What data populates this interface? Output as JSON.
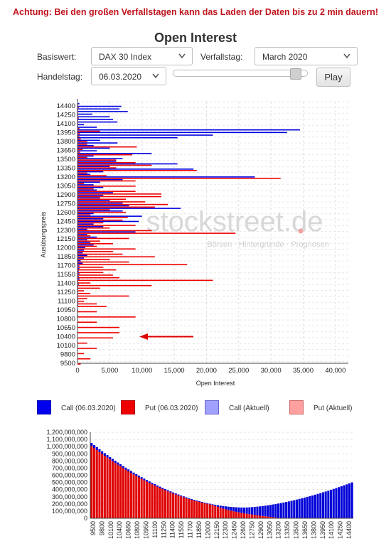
{
  "warning": "Achtung: Bei den großen Verfallstagen kann das Laden der Daten bis zu 2 min dauern!",
  "title": "Open Interest",
  "controls": {
    "basiswert_label": "Basiswert:",
    "basiswert_value": "DAX 30 Index",
    "verfallstag_label": "Verfallstag:",
    "verfallstag_value": "March 2020",
    "handelstag_label": "Handelstag:",
    "handelstag_value": "06.03.2020",
    "play_label": "Play",
    "slider_position": 0.95
  },
  "watermark": {
    "brand": "stockstreet.de",
    "tagline": "Börsen · Hintergründe · Prognosen"
  },
  "colors": {
    "call": "#0000e0",
    "put": "#ee0000",
    "call_current": "#9999ff",
    "put_current": "#ff9999",
    "arrow": "#e00000"
  },
  "legend": [
    {
      "label": "Call (06.03.2020)",
      "color": "#0000ee",
      "border": "#0000aa"
    },
    {
      "label": "Put (06.03.2020)",
      "color": "#ee0000",
      "border": "#aa0000"
    },
    {
      "label": "Call (Aktuell)",
      "color": "#a0a0ff",
      "border": "#6666cc"
    },
    {
      "label": "Put (Aktuell)",
      "color": "#ffa0a0",
      "border": "#cc6666"
    }
  ],
  "chart_data": [
    {
      "type": "bar",
      "orientation": "horizontal",
      "xlabel": "Open Interest",
      "ylabel": "Ausübungspreis",
      "xlim": [
        0,
        42000
      ],
      "xticks": [
        0,
        5000,
        10000,
        15000,
        20000,
        25000,
        30000,
        35000,
        40000
      ],
      "xtick_labels": [
        "0",
        "5,000",
        "10,000",
        "15,000",
        "20,000",
        "25,000",
        "30,000",
        "35,000",
        "40,000"
      ],
      "ytick_labels": [
        "14400",
        "14250",
        "14100",
        "13950",
        "13800",
        "13650",
        "13500",
        "13350",
        "13200",
        "13050",
        "12900",
        "12750",
        "12600",
        "12450",
        "12300",
        "12150",
        "12000",
        "11850",
        "11700",
        "11550",
        "11400",
        "11250",
        "11100",
        "10950",
        "10800",
        "10650",
        "10400",
        "10100",
        "9800",
        "9500"
      ],
      "strike_range": [
        9500,
        14500
      ],
      "highlighted_strike": 10400,
      "series": [
        {
          "name": "Call (06.03.2020)",
          "points": [
            [
              14450,
              300
            ],
            [
              14400,
              6800
            ],
            [
              14350,
              6500
            ],
            [
              14300,
              7800
            ],
            [
              14250,
              2300
            ],
            [
              14200,
              5000
            ],
            [
              14150,
              5500
            ],
            [
              14100,
              6200
            ],
            [
              14050,
              1000
            ],
            [
              14000,
              3000
            ],
            [
              13950,
              34500
            ],
            [
              13900,
              32500
            ],
            [
              13850,
              21000
            ],
            [
              13800,
              15500
            ],
            [
              13750,
              3500
            ],
            [
              13700,
              6200
            ],
            [
              13650,
              2500
            ],
            [
              13600,
              5000
            ],
            [
              13550,
              3000
            ],
            [
              13500,
              11500
            ],
            [
              13450,
              2500
            ],
            [
              13400,
              7000
            ],
            [
              13350,
              6000
            ],
            [
              13300,
              15500
            ],
            [
              13250,
              5000
            ],
            [
              13200,
              18000
            ],
            [
              13150,
              4000
            ],
            [
              13100,
              2000
            ],
            [
              13050,
              27500
            ],
            [
              13000,
              7000
            ],
            [
              12950,
              3500
            ],
            [
              12900,
              2500
            ],
            [
              12850,
              4000
            ],
            [
              12800,
              3000
            ],
            [
              12750,
              5500
            ],
            [
              12700,
              4000
            ],
            [
              12650,
              3500
            ],
            [
              12600,
              5000
            ],
            [
              12550,
              7000
            ],
            [
              12500,
              8000
            ],
            [
              12450,
              16000
            ],
            [
              12400,
              7000
            ],
            [
              12350,
              2500
            ],
            [
              12300,
              10000
            ],
            [
              12250,
              4000
            ],
            [
              12200,
              9500
            ],
            [
              12150,
              2500
            ],
            [
              12100,
              4000
            ],
            [
              12050,
              1500
            ],
            [
              12000,
              9000
            ],
            [
              11950,
              1500
            ],
            [
              11900,
              3000
            ],
            [
              11850,
              1500
            ],
            [
              11800,
              2000
            ],
            [
              11750,
              2500
            ],
            [
              11700,
              1200
            ],
            [
              11650,
              1000
            ],
            [
              11600,
              800
            ],
            [
              11550,
              1500
            ],
            [
              11500,
              1000
            ],
            [
              11450,
              500
            ],
            [
              11400,
              800
            ],
            [
              11350,
              300
            ],
            [
              11300,
              300
            ],
            [
              11250,
              200
            ],
            [
              11200,
              300
            ],
            [
              11150,
              200
            ],
            [
              11100,
              300
            ],
            [
              11050,
              100
            ],
            [
              11000,
              200
            ],
            [
              10950,
              100
            ],
            [
              10900,
              100
            ],
            [
              10850,
              100
            ],
            [
              10800,
              100
            ],
            [
              10750,
              100
            ],
            [
              10700,
              100
            ],
            [
              10650,
              100
            ],
            [
              10600,
              100
            ],
            [
              10500,
              100
            ],
            [
              10400,
              100
            ],
            [
              10300,
              50
            ],
            [
              10200,
              50
            ],
            [
              10100,
              50
            ],
            [
              10000,
              50
            ],
            [
              9900,
              50
            ],
            [
              9800,
              50
            ],
            [
              9700,
              50
            ],
            [
              9600,
              50
            ],
            [
              9500,
              50
            ]
          ]
        },
        {
          "name": "Put (06.03.2020)",
          "points": [
            [
              14450,
              100
            ],
            [
              14400,
              200
            ],
            [
              14350,
              100
            ],
            [
              14300,
              100
            ],
            [
              14250,
              100
            ],
            [
              14200,
              200
            ],
            [
              14150,
              100
            ],
            [
              14100,
              100
            ],
            [
              14050,
              100
            ],
            [
              14000,
              300
            ],
            [
              13950,
              3500
            ],
            [
              13900,
              400
            ],
            [
              13850,
              300
            ],
            [
              13800,
              500
            ],
            [
              13750,
              1500
            ],
            [
              13700,
              1500
            ],
            [
              13650,
              9200
            ],
            [
              13600,
              800
            ],
            [
              13550,
              400
            ],
            [
              13500,
              8500
            ],
            [
              13450,
              1500
            ],
            [
              13400,
              6000
            ],
            [
              13350,
              9000
            ],
            [
              13300,
              11500
            ],
            [
              13250,
              6000
            ],
            [
              13200,
              18500
            ],
            [
              13150,
              1500
            ],
            [
              13100,
              4500
            ],
            [
              13050,
              31500
            ],
            [
              13000,
              9000
            ],
            [
              12950,
              1000
            ],
            [
              12900,
              9000
            ],
            [
              12850,
              2500
            ],
            [
              12800,
              9000
            ],
            [
              12750,
              13000
            ],
            [
              12700,
              13000
            ],
            [
              12650,
              7500
            ],
            [
              12600,
              10500
            ],
            [
              12550,
              14000
            ],
            [
              12500,
              12000
            ],
            [
              12450,
              5000
            ],
            [
              12400,
              7500
            ],
            [
              12350,
              2000
            ],
            [
              12300,
              7800
            ],
            [
              12250,
              7000
            ],
            [
              12200,
              4000
            ],
            [
              12150,
              9000
            ],
            [
              12100,
              5000
            ],
            [
              12050,
              11500
            ],
            [
              12000,
              24500
            ],
            [
              11950,
              2000
            ],
            [
              11900,
              8000
            ],
            [
              11850,
              3500
            ],
            [
              11800,
              5500
            ],
            [
              11750,
              3000
            ],
            [
              11700,
              9000
            ],
            [
              11650,
              5500
            ],
            [
              11600,
              7000
            ],
            [
              11550,
              12000
            ],
            [
              11500,
              5000
            ],
            [
              11450,
              8000
            ],
            [
              11400,
              17000
            ],
            [
              11350,
              4000
            ],
            [
              11300,
              6000
            ],
            [
              11250,
              4000
            ],
            [
              11200,
              5500
            ],
            [
              11150,
              6500
            ],
            [
              11100,
              21000
            ],
            [
              11050,
              2000
            ],
            [
              11000,
              11500
            ],
            [
              10950,
              3500
            ],
            [
              10900,
              1000
            ],
            [
              10850,
              2000
            ],
            [
              10800,
              8000
            ],
            [
              10750,
              1500
            ],
            [
              10700,
              1000
            ],
            [
              10650,
              3000
            ],
            [
              10600,
              4500
            ],
            [
              10500,
              3000
            ],
            [
              10400,
              9000
            ],
            [
              10300,
              3000
            ],
            [
              10200,
              6500
            ],
            [
              10100,
              6500
            ],
            [
              10000,
              5500
            ],
            [
              9900,
              1500
            ],
            [
              9800,
              3000
            ],
            [
              9700,
              1000
            ],
            [
              9600,
              2000
            ],
            [
              9500,
              500
            ]
          ]
        }
      ]
    },
    {
      "type": "bar",
      "stacked": true,
      "ylim": [
        0,
        1200000000
      ],
      "yticks": [
        0,
        100000000,
        200000000,
        300000000,
        400000000,
        500000000,
        600000000,
        700000000,
        800000000,
        900000000,
        1000000000,
        1100000000,
        1200000000
      ],
      "ytick_labels": [
        "0",
        "100,000,000",
        "200,000,000",
        "300,000,000",
        "400,000,000",
        "500,000,000",
        "600,000,000",
        "700,000,000",
        "800,000,000",
        "900,000,000",
        "1,000,000,000",
        "1,100,000,000",
        "1,200,000,000"
      ],
      "xtick_labels": [
        "9500",
        "9800",
        "10100",
        "10400",
        "10650",
        "10800",
        "10950",
        "11100",
        "11250",
        "11400",
        "11550",
        "11700",
        "11850",
        "12000",
        "12150",
        "12300",
        "12450",
        "12600",
        "12750",
        "12900",
        "13050",
        "13200",
        "13350",
        "13500",
        "13650",
        "13800",
        "13950",
        "14100",
        "14250",
        "14400"
      ],
      "strike_range": [
        9500,
        14450
      ],
      "minimum_strike": 12400,
      "minimum_total": 150000000,
      "start_total": 1050000000,
      "end_total": 500000000
    }
  ]
}
